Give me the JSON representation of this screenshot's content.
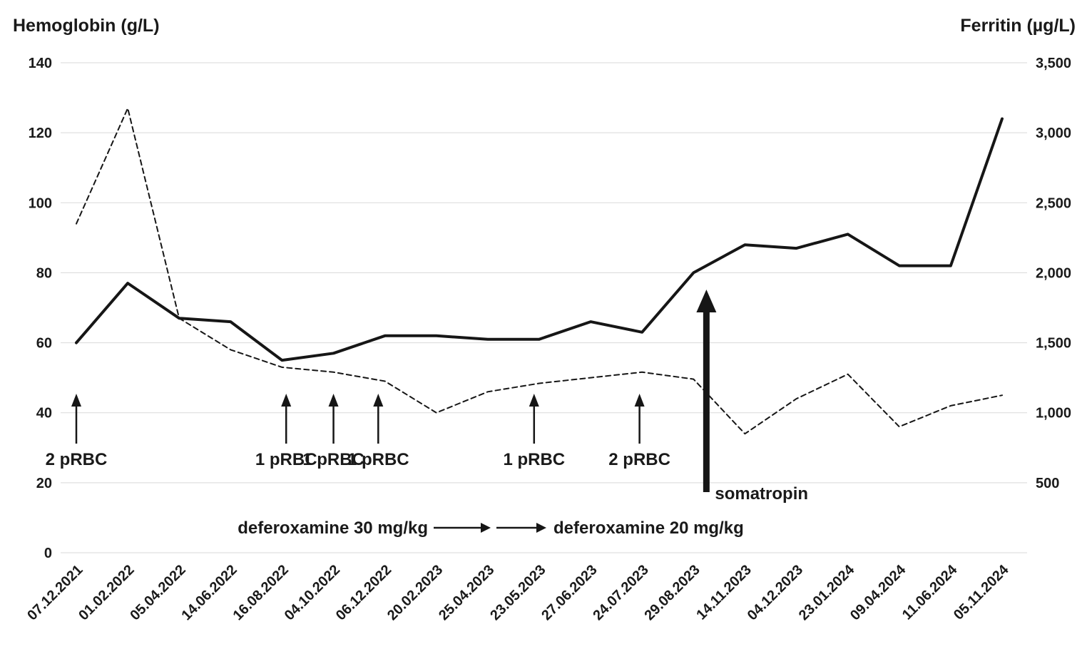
{
  "chart_data": {
    "type": "line",
    "title": "",
    "legend": "none",
    "grid": "horizontal-light",
    "left_axis": {
      "label": "Hemoglobin (g/L)",
      "min": 0,
      "max": 140,
      "ticks": [
        {
          "value": 0,
          "label": "0"
        },
        {
          "value": 20,
          "label": "20"
        },
        {
          "value": 40,
          "label": "40"
        },
        {
          "value": 60,
          "label": "60"
        },
        {
          "value": 80,
          "label": "80"
        },
        {
          "value": 100,
          "label": "100"
        },
        {
          "value": 120,
          "label": "120"
        },
        {
          "value": 140,
          "label": "140"
        }
      ]
    },
    "right_axis": {
      "label": "Ferritin (µg/L)",
      "min": 0,
      "max": 3500,
      "ticks": [
        {
          "value": 500,
          "label": "500"
        },
        {
          "value": 1000,
          "label": "1,000"
        },
        {
          "value": 1500,
          "label": "1,500"
        },
        {
          "value": 2000,
          "label": "2,000"
        },
        {
          "value": 2500,
          "label": "2,500"
        },
        {
          "value": 3000,
          "label": "3,000"
        },
        {
          "value": 3500,
          "label": "3,500"
        }
      ]
    },
    "categories": [
      "07.12.2021",
      "01.02.2022",
      "05.04.2022",
      "14.06.2022",
      "16.08.2022",
      "04.10.2022",
      "06.12.2022",
      "20.02.2023",
      "25.04.2023",
      "23.05.2023",
      "27.06.2023",
      "24.07.2023",
      "29.08.2023",
      "14.11.2023",
      "04.12.2023",
      "23.01.2024",
      "09.04.2024",
      "11.06.2024",
      "05.11.2024"
    ],
    "series": [
      {
        "name": "Hemoglobin",
        "axis": "left",
        "style": "solid",
        "values": [
          60,
          77,
          67,
          66,
          55,
          57,
          62,
          62,
          61,
          61,
          66,
          63,
          80,
          88,
          87,
          91,
          82,
          82,
          124
        ]
      },
      {
        "name": "Ferritin",
        "axis": "right",
        "style": "dashed",
        "values": [
          2350,
          3175,
          1675,
          1450,
          1325,
          1290,
          1225,
          1000,
          1150,
          1210,
          1250,
          1290,
          1240,
          850,
          1100,
          1275,
          900,
          1050,
          1125
        ]
      }
    ],
    "annotations": {
      "transfusions": [
        {
          "label": "2 pRBC",
          "x_index": 0
        },
        {
          "label": "1 pRBC",
          "x_index": 4.08
        },
        {
          "label": "1 pRBC",
          "x_index": 5.0
        },
        {
          "label": "1 pRBC",
          "x_index": 5.87
        },
        {
          "label": "1 pRBC",
          "x_index": 8.9
        },
        {
          "label": "2 pRBC",
          "x_index": 10.95
        }
      ],
      "somatropin": {
        "label": "somatropin",
        "x_index": 12.25
      },
      "deferoxamine": {
        "text_before": "deferoxamine 30 mg/kg",
        "text_after": "deferoxamine 20 mg/kg"
      }
    },
    "colors": {
      "line": "#161616",
      "grid": "#d9d9d9",
      "text": "#1a1a1a",
      "background": "#ffffff"
    }
  }
}
